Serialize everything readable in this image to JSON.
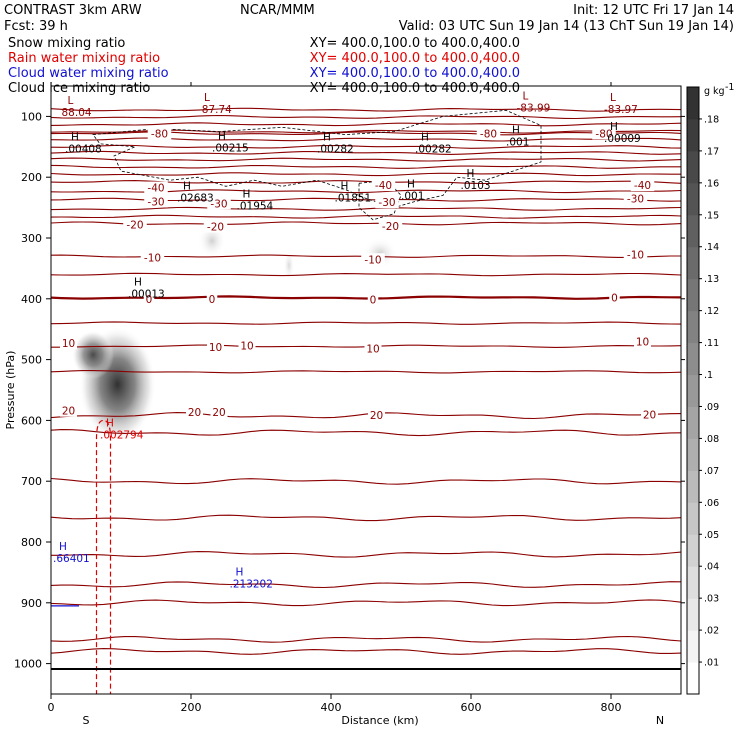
{
  "header": {
    "left_title": "CONTRAST  3km ARW",
    "center_title": "NCAR/MMM",
    "init": "Init: 12 UTC Fri 17 Jan 14",
    "fcst": "Fcst:   39 h",
    "valid": "Valid: 03 UTC Sun 19 Jan 14 (13 ChT Sun 19 Jan 14)",
    "fields": [
      {
        "name": "Snow mixing ratio",
        "xy": "XY= 400.0,100.0 to 400.0,400.0",
        "color": "#000000"
      },
      {
        "name": "Rain water mixing ratio",
        "xy": "XY= 400.0,100.0 to 400.0,400.0",
        "color": "#e00000"
      },
      {
        "name": "Cloud water mixing ratio",
        "xy": "XY= 400.0,100.0 to 400.0,400.0",
        "color": "#1010d0"
      },
      {
        "name": "Cloud ice mixing ratio",
        "xy": "XY= 400.0,100.0 to 400.0,400.0",
        "color": "#000000"
      }
    ]
  },
  "chart_data": {
    "type": "contour",
    "xlabel": "Distance (km)",
    "ylabel": "Pressure (hPa)",
    "x_range": [
      0,
      900
    ],
    "y_range": [
      50,
      1050
    ],
    "x_ticks": [
      0,
      200,
      400,
      600,
      800
    ],
    "y_ticks": [
      100,
      200,
      300,
      400,
      500,
      600,
      700,
      800,
      900,
      1000
    ],
    "x_end_labels": {
      "left": "S",
      "right": "N"
    },
    "colorbar": {
      "unit": "g kg",
      "unit_sup": "-1",
      "levels": [
        0.01,
        0.02,
        0.03,
        0.04,
        0.05,
        0.06,
        0.07,
        0.08,
        0.09,
        0.1,
        0.11,
        0.12,
        0.13,
        0.14,
        0.15,
        0.16,
        0.17,
        0.18
      ],
      "labels": [
        ".01",
        ".02",
        ".03",
        ".04",
        ".05",
        ".06",
        ".07",
        ".08",
        ".09",
        ".1",
        ".11",
        ".12",
        ".13",
        ".14",
        ".15",
        ".16",
        ".17",
        ".18"
      ]
    },
    "temperature_contours": {
      "color": "#8b0000",
      "levels": [
        -80,
        -70,
        -60,
        -50,
        -40,
        -30,
        -20,
        -10,
        0,
        10,
        20
      ],
      "pressure_at_level": {
        "-80": 128,
        "-40": 208,
        "-30": 237,
        "-20": 276,
        "-10": 330,
        "0": 398,
        "10": 478,
        "20": 592
      },
      "extra_lines_pressure": [
        89,
        101,
        113,
        125,
        138,
        150,
        160,
        171,
        183,
        195,
        223,
        252,
        265,
        360,
        440,
        520,
        620,
        700,
        760,
        820,
        870,
        900,
        960,
        980
      ],
      "labels": [
        {
          "text": "-80",
          "x": 155,
          "p": 128
        },
        {
          "text": "-80",
          "x": 625,
          "p": 128
        },
        {
          "text": "-80",
          "x": 790,
          "p": 128
        },
        {
          "text": "-40",
          "x": 150,
          "p": 217
        },
        {
          "text": "-40",
          "x": 475,
          "p": 213
        },
        {
          "text": "-40",
          "x": 845,
          "p": 213
        },
        {
          "text": "-30",
          "x": 150,
          "p": 240
        },
        {
          "text": "-30",
          "x": 240,
          "p": 243
        },
        {
          "text": "-30",
          "x": 480,
          "p": 241
        },
        {
          "text": "-30",
          "x": 835,
          "p": 235
        },
        {
          "text": "-20",
          "x": 120,
          "p": 278
        },
        {
          "text": "-20",
          "x": 235,
          "p": 281
        },
        {
          "text": "-20",
          "x": 485,
          "p": 280
        },
        {
          "text": "-10",
          "x": 145,
          "p": 332
        },
        {
          "text": "-10",
          "x": 460,
          "p": 335
        },
        {
          "text": "-10",
          "x": 835,
          "p": 327
        },
        {
          "text": "0",
          "x": 140,
          "p": 400
        },
        {
          "text": "0",
          "x": 230,
          "p": 400
        },
        {
          "text": "0",
          "x": 460,
          "p": 401
        },
        {
          "text": "0",
          "x": 805,
          "p": 398
        },
        {
          "text": "10",
          "x": 25,
          "p": 473
        },
        {
          "text": "10",
          "x": 235,
          "p": 479
        },
        {
          "text": "10",
          "x": 280,
          "p": 477
        },
        {
          "text": "10",
          "x": 460,
          "p": 482
        },
        {
          "text": "10",
          "x": 845,
          "p": 470
        },
        {
          "text": "20",
          "x": 25,
          "p": 584
        },
        {
          "text": "20",
          "x": 205,
          "p": 586
        },
        {
          "text": "20",
          "x": 240,
          "p": 586
        },
        {
          "text": "20",
          "x": 465,
          "p": 591
        },
        {
          "text": "20",
          "x": 855,
          "p": 590
        }
      ]
    },
    "extrema": [
      {
        "type": "L",
        "value": "88.04",
        "x": 15,
        "p": 80,
        "color": "#8b0000",
        "lowercase_value_offset": false
      },
      {
        "type": "L",
        "value": "-87.74",
        "x": 210,
        "p": 75,
        "color": "#8b0000"
      },
      {
        "type": "L",
        "value": "-83.99",
        "x": 665,
        "p": 72,
        "color": "#8b0000"
      },
      {
        "type": "L",
        "value": "-83.97",
        "x": 790,
        "p": 75,
        "color": "#8b0000"
      },
      {
        "type": "H",
        "value": ".00408",
        "x": 20,
        "p": 140,
        "color": "#000000"
      },
      {
        "type": "H",
        "value": ".00215",
        "x": 230,
        "p": 138,
        "color": "#000000"
      },
      {
        "type": "H",
        "value": ".00282",
        "x": 380,
        "p": 140,
        "color": "#000000"
      },
      {
        "type": "H",
        "value": ".00282",
        "x": 520,
        "p": 140,
        "color": "#000000"
      },
      {
        "type": "H",
        "value": ".001",
        "x": 650,
        "p": 128,
        "color": "#000000"
      },
      {
        "type": "H",
        "value": ".00009",
        "x": 790,
        "p": 122,
        "color": "#000000"
      },
      {
        "type": "H",
        "value": ".02683",
        "x": 180,
        "p": 220,
        "color": "#000000"
      },
      {
        "type": "H",
        "value": ".01954",
        "x": 265,
        "p": 233,
        "color": "#000000"
      },
      {
        "type": "H",
        "value": ".01851",
        "x": 405,
        "p": 220,
        "color": "#000000"
      },
      {
        "type": "H",
        "value": ".001",
        "x": 500,
        "p": 217,
        "color": "#000000"
      },
      {
        "type": "H",
        "value": ".0103",
        "x": 585,
        "p": 200,
        "color": "#000000"
      },
      {
        "type": "H",
        "value": ".00013",
        "x": 110,
        "p": 378,
        "color": "#000000"
      },
      {
        "type": "H",
        "value": ".002794",
        "x": 70,
        "p": 610,
        "color": "#e00000"
      },
      {
        "type": "H",
        "value": ".66401",
        "x": 2,
        "p": 813,
        "color": "#1010d0"
      },
      {
        "type": "H",
        "value": ".213202",
        "x": 255,
        "p": 855,
        "color": "#1010d0"
      }
    ],
    "snow_shading": [
      {
        "x": 95,
        "p": 560,
        "rx_km": 55,
        "ry_hpa": 95,
        "max": 0.18
      },
      {
        "x": 60,
        "p": 500,
        "rx_km": 30,
        "ry_hpa": 40,
        "max": 0.11
      },
      {
        "x": 230,
        "p": 310,
        "rx_km": 20,
        "ry_hpa": 28,
        "max": 0.05
      },
      {
        "x": 470,
        "p": 330,
        "rx_km": 25,
        "ry_hpa": 25,
        "max": 0.05
      },
      {
        "x": 340,
        "p": 350,
        "rx_km": 8,
        "ry_hpa": 25,
        "max": 0.03
      }
    ],
    "rain_region": {
      "x_left": 65,
      "x_right": 85,
      "p_top": 600,
      "p_bottom": 1065,
      "color": "#e00000"
    },
    "cloudwater_contour": {
      "x_start": 0,
      "x_end": 40,
      "p_top": 905,
      "color": "#1010d0"
    },
    "cloud_ice_contour_label": ".001"
  }
}
